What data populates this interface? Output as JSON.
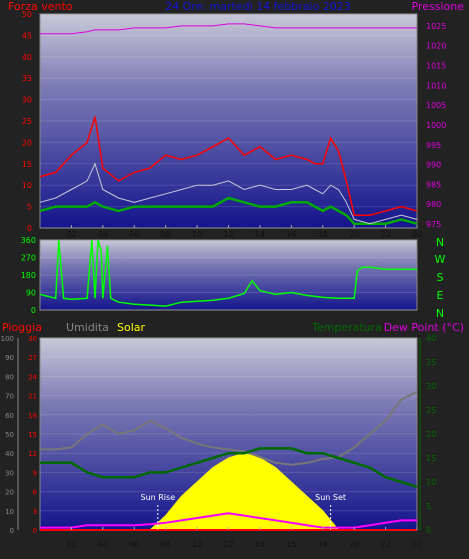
{
  "colors": {
    "background": "#222222",
    "plot_top": "#c8c8d8",
    "plot_bottom": "#14148c",
    "wind_gust": "#ff0000",
    "wind_avg": "#c8c8dc",
    "wind_green": "#00aa00",
    "pressure": "#dd00dd",
    "direction": "#00ff00",
    "rain": "#ff0000",
    "humidity": "#777777",
    "solar": "#ffff00",
    "temperature": "#006a00",
    "dewpoint": "#ff00ff",
    "time_label": "#111111",
    "panel_border": "#888888"
  },
  "header": {
    "left": "Forza vento",
    "center": "24 Ore: martedì 14 febbraio 2023",
    "right": "Pressione"
  },
  "x_ticks": [
    "02",
    "04",
    "06",
    "08",
    "10",
    "12",
    "14",
    "16",
    "18",
    "20",
    "22",
    "00"
  ],
  "chart_data": [
    {
      "type": "line",
      "panel": "wind_pressure",
      "title": "24 Ore: martedì 14 febbraio 2023",
      "y_left_label": "Forza vento",
      "y_left_ticks": [
        "0",
        "5",
        "10",
        "15",
        "20",
        "25",
        "30",
        "35",
        "40",
        "45",
        "50"
      ],
      "y_left_range": [
        0,
        50
      ],
      "y_right_label": "Pressione",
      "y_right_ticks": [
        "975",
        "980",
        "985",
        "990",
        "995",
        "1000",
        "1005",
        "1010",
        "1015",
        "1020",
        "1025"
      ],
      "y_right_range": [
        974,
        1028
      ],
      "x": [
        0,
        1,
        2,
        3,
        3.5,
        4,
        5,
        6,
        7,
        8,
        9,
        10,
        11,
        12,
        13,
        14,
        15,
        16,
        17,
        17.5,
        18,
        18.5,
        19,
        19.5,
        20,
        21,
        22,
        23,
        24
      ],
      "series": [
        {
          "name": "",
          "key": "wind_gust",
          "values": [
            12,
            13,
            17,
            20,
            26,
            14,
            11,
            13,
            14,
            17,
            16,
            17,
            19,
            21,
            17,
            19,
            16,
            17,
            16,
            15,
            15,
            21,
            18,
            11,
            3,
            3,
            4,
            5,
            4
          ]
        },
        {
          "name": "",
          "key": "wind_avg",
          "values": [
            6,
            7,
            9,
            11,
            15,
            9,
            7,
            6,
            7,
            8,
            9,
            10,
            10,
            11,
            9,
            10,
            9,
            9,
            10,
            9,
            8,
            10,
            9,
            6,
            2,
            1,
            2,
            3,
            2
          ]
        },
        {
          "name": "",
          "key": "wind_green",
          "values": [
            4,
            5,
            5,
            5,
            6,
            5,
            4,
            5,
            5,
            5,
            5,
            5,
            5,
            7,
            6,
            5,
            5,
            6,
            6,
            5,
            4,
            5,
            4,
            3,
            1,
            1,
            1,
            2,
            1
          ]
        },
        {
          "name": "",
          "key": "pressure",
          "values": [
            1023,
            1023,
            1023,
            1023.5,
            1024,
            1024,
            1024,
            1024.5,
            1024.5,
            1024.5,
            1025,
            1025,
            1025,
            1025.5,
            1025.5,
            1025,
            1024.5,
            1024.5,
            1024.5,
            1024.5,
            1024.5,
            1024.5,
            1024.5,
            1024.5,
            1024.5,
            1024.5,
            1024.5,
            1024.5,
            1024.5
          ]
        }
      ]
    },
    {
      "type": "line",
      "panel": "wind_direction",
      "y_ticks": [
        "0",
        "90",
        "180",
        "270",
        "360"
      ],
      "y_range": [
        0,
        360
      ],
      "compass_labels": [
        "N",
        "W",
        "S",
        "E",
        "N"
      ],
      "x": [
        0,
        1,
        1.2,
        1.5,
        2,
        3,
        3.3,
        3.5,
        3.7,
        3.9,
        4,
        4.3,
        4.5,
        5,
        6,
        7,
        8,
        9,
        10,
        11,
        12,
        13,
        13.5,
        14,
        15,
        16,
        17,
        18,
        19,
        20,
        20.2,
        20.5,
        21,
        22,
        22.5,
        23,
        24
      ],
      "series": [
        {
          "name": "",
          "key": "direction",
          "values": [
            80,
            60,
            360,
            60,
            55,
            60,
            360,
            60,
            360,
            300,
            60,
            330,
            60,
            40,
            30,
            25,
            20,
            40,
            45,
            50,
            60,
            85,
            150,
            100,
            80,
            90,
            75,
            65,
            60,
            60,
            200,
            220,
            220,
            210,
            210,
            210,
            210
          ]
        }
      ]
    },
    {
      "type": "area",
      "panel": "weather",
      "legend": {
        "rain": "Pioggia",
        "humidity": "Umidita",
        "solar": "Solar",
        "temperature": "Temperatura",
        "dewpoint": "Dew Point (°C)"
      },
      "humidity_ticks": [
        "0",
        "10",
        "20",
        "30",
        "40",
        "50",
        "60",
        "70",
        "80",
        "90",
        "100"
      ],
      "rain_ticks": [
        "0",
        "3",
        "6",
        "9",
        "12",
        "15",
        "18",
        "21",
        "24",
        "27",
        "30"
      ],
      "temp_ticks": [
        "0",
        "5",
        "10",
        "15",
        "20",
        "25",
        "30",
        "35",
        "40"
      ],
      "humidity_range": [
        0,
        100
      ],
      "temp_range": [
        0,
        40
      ],
      "annotations": [
        "Sun Rise",
        "Sun Set"
      ],
      "sun_rise_hour": 7.5,
      "sun_set_hour": 18.5,
      "x": [
        0,
        1,
        2,
        3,
        4,
        5,
        6,
        7,
        8,
        9,
        10,
        11,
        12,
        13,
        14,
        15,
        16,
        17,
        18,
        19,
        20,
        21,
        22,
        23,
        24
      ],
      "series": [
        {
          "name": "Umidita",
          "key": "humidity",
          "values": [
            42,
            42,
            43,
            50,
            55,
            50,
            52,
            57,
            53,
            48,
            45,
            43,
            42,
            41,
            38,
            35,
            34,
            35,
            37,
            38,
            43,
            50,
            57,
            68,
            72
          ]
        },
        {
          "name": "Temperatura",
          "key": "temperature",
          "values": [
            14,
            14,
            14,
            12,
            11,
            11,
            11,
            12,
            12,
            13,
            14,
            15,
            16,
            16,
            17,
            17,
            17,
            16,
            16,
            15,
            14,
            13,
            11,
            10,
            9
          ]
        },
        {
          "name": "Dew Point (°C)",
          "key": "dewpoint",
          "values": [
            0.5,
            0.5,
            0.5,
            1,
            1,
            1,
            1,
            1.2,
            1.5,
            2,
            2.5,
            3,
            3.5,
            3,
            2.5,
            2,
            1.5,
            1,
            0.5,
            0.5,
            0.5,
            1,
            1.5,
            2,
            2
          ]
        },
        {
          "name": "Solar",
          "key": "solar",
          "values": [
            0,
            0,
            0,
            0,
            0,
            0,
            0,
            0,
            3,
            7,
            10,
            13,
            15,
            16,
            15,
            13,
            10,
            7,
            4,
            0,
            0,
            0,
            0,
            0,
            0
          ]
        },
        {
          "name": "Pioggia",
          "key": "rain",
          "values": [
            0,
            0,
            0,
            0,
            0,
            0,
            0,
            0,
            0,
            0,
            0,
            0,
            0,
            0,
            0,
            0,
            0,
            0,
            0,
            0,
            0,
            0,
            0,
            0,
            0
          ]
        }
      ]
    }
  ]
}
